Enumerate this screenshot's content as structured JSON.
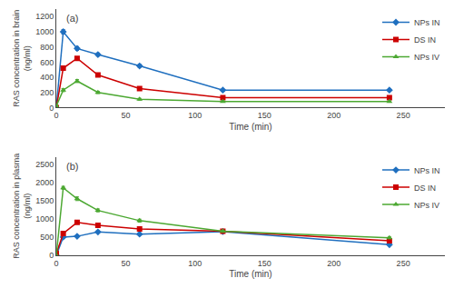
{
  "chart_data": [
    {
      "type": "line",
      "x": [
        0,
        5,
        15,
        30,
        60,
        120,
        240
      ],
      "series": [
        {
          "name": "NPs IN",
          "color": "#1F6FBF",
          "marker": "diamond",
          "values": [
            0,
            1000,
            780,
            700,
            550,
            230,
            230
          ],
          "errors": [
            0,
            30,
            25,
            20,
            20,
            15,
            15
          ]
        },
        {
          "name": "DS IN",
          "color": "#CC0000",
          "marker": "square",
          "values": [
            0,
            520,
            650,
            430,
            250,
            130,
            130
          ],
          "errors": [
            0,
            25,
            20,
            20,
            20,
            15,
            15
          ]
        },
        {
          "name": "NPs IV",
          "color": "#4CA832",
          "marker": "triangle-up",
          "values": [
            20,
            230,
            350,
            200,
            110,
            80,
            80
          ],
          "errors": [
            10,
            20,
            20,
            15,
            12,
            10,
            10
          ]
        }
      ],
      "xlim": [
        0,
        280
      ],
      "xticks": [
        0,
        50,
        100,
        150,
        200,
        250
      ],
      "ylim": [
        0,
        1300
      ],
      "yticks": [
        0,
        200,
        400,
        600,
        800,
        1000,
        1200
      ],
      "x_label": "Time (min)",
      "y_label": "RAS concentration in brain\n(ng/ml)",
      "annotations": [
        "(a)"
      ],
      "legend": "upper right",
      "grid": false
    },
    {
      "type": "line",
      "x": [
        0,
        5,
        15,
        30,
        60,
        120,
        240
      ],
      "series": [
        {
          "name": "NPs IN",
          "color": "#1F6FBF",
          "marker": "diamond",
          "values": [
            0,
            500,
            520,
            640,
            580,
            650,
            290
          ],
          "errors": [
            0,
            30,
            25,
            30,
            25,
            30,
            20
          ]
        },
        {
          "name": "DS IN",
          "color": "#CC0000",
          "marker": "square",
          "values": [
            50,
            600,
            900,
            820,
            720,
            660,
            400
          ],
          "errors": [
            20,
            25,
            30,
            25,
            30,
            25,
            20
          ]
        },
        {
          "name": "NPs IV",
          "color": "#4CA832",
          "marker": "triangle-up",
          "values": [
            0,
            1850,
            1550,
            1230,
            950,
            660,
            480
          ],
          "errors": [
            0,
            40,
            50,
            40,
            40,
            30,
            25
          ]
        }
      ],
      "xlim": [
        0,
        280
      ],
      "xticks": [
        0,
        50,
        100,
        150,
        200,
        250
      ],
      "ylim": [
        0,
        2700
      ],
      "yticks": [
        0,
        500,
        1000,
        1500,
        2000,
        2500
      ],
      "x_label": "Time (min)",
      "y_label": "RAS concentration in plasma\n(ng/ml)",
      "annotations": [
        "(b)"
      ],
      "legend": "upper right",
      "grid": false
    }
  ]
}
